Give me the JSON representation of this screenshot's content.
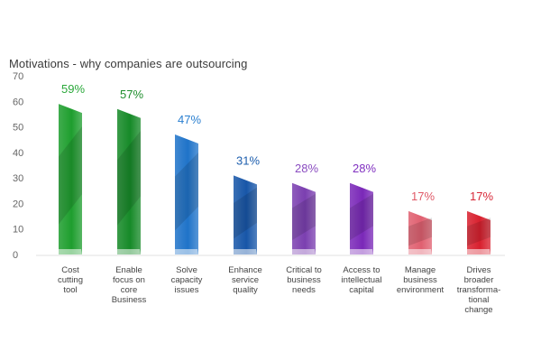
{
  "chart_data": {
    "type": "bar",
    "title": "Motivations - why companies are outsourcing",
    "ylim": [
      0,
      70
    ],
    "yticks": [
      0,
      10,
      20,
      30,
      40,
      50,
      60,
      70
    ],
    "grid": false,
    "categories": [
      [
        "Cost",
        "cutting",
        "tool"
      ],
      [
        "Enable",
        "focus on",
        "core",
        "Business"
      ],
      [
        "Solve",
        "capacity",
        "issues"
      ],
      [
        "Enhance",
        "service",
        "quality"
      ],
      [
        "Critical to",
        "business",
        "needs"
      ],
      [
        "Access to",
        "intellectual",
        "capital"
      ],
      [
        "Manage",
        "business",
        "environment"
      ],
      [
        "Drives",
        "broader",
        "transforma-",
        "tional",
        "change"
      ]
    ],
    "values": [
      59,
      57,
      47,
      31,
      28,
      28,
      17,
      17
    ],
    "value_labels": [
      "59%",
      "57%",
      "47%",
      "31%",
      "28%",
      "28%",
      "17%",
      "17%"
    ],
    "colors": [
      "#1e9e2e",
      "#168a28",
      "#1f73c9",
      "#1756a8",
      "#7b3fb0",
      "#7a28b8",
      "#e06070",
      "#d8202e"
    ],
    "label_colors": [
      "#2aa83a",
      "#1e8e2c",
      "#2a7fd0",
      "#1e5fae",
      "#8a4cc0",
      "#8030c0",
      "#e05a68",
      "#d82838"
    ]
  }
}
